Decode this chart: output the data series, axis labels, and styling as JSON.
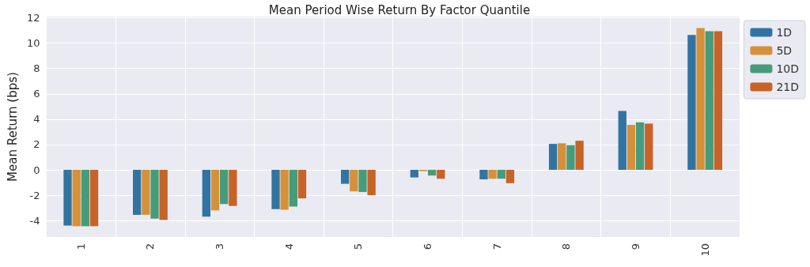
{
  "chart_data": {
    "type": "bar",
    "title": "Mean Period Wise Return By Factor Quantile",
    "ylabel": "Mean Return (bps)",
    "categories": [
      "1",
      "2",
      "3",
      "4",
      "5",
      "6",
      "7",
      "8",
      "9",
      "10"
    ],
    "series": [
      {
        "name": "1D",
        "color": "#3274a1",
        "values": [
          -4.4,
          -3.55,
          -3.7,
          -3.1,
          -1.1,
          -0.6,
          -0.75,
          2.05,
          4.65,
          10.65
        ]
      },
      {
        "name": "5D",
        "color": "#d5913a",
        "values": [
          -4.45,
          -3.55,
          -3.2,
          -3.15,
          -1.7,
          -0.1,
          -0.7,
          2.1,
          3.55,
          11.2
        ]
      },
      {
        "name": "10D",
        "color": "#479b7a",
        "values": [
          -4.45,
          -3.85,
          -2.7,
          -2.9,
          -1.75,
          -0.45,
          -0.7,
          1.95,
          3.75,
          10.95
        ]
      },
      {
        "name": "21D",
        "color": "#c86328",
        "values": [
          -4.45,
          -3.95,
          -2.85,
          -2.25,
          -2.0,
          -0.7,
          -1.05,
          2.3,
          3.65,
          10.95
        ]
      }
    ],
    "ylim": [
      -5.3,
      12.1
    ],
    "yticks": [
      -4,
      -2,
      0,
      2,
      4,
      6,
      8,
      10,
      12
    ],
    "grid": true,
    "legend": "top right"
  }
}
